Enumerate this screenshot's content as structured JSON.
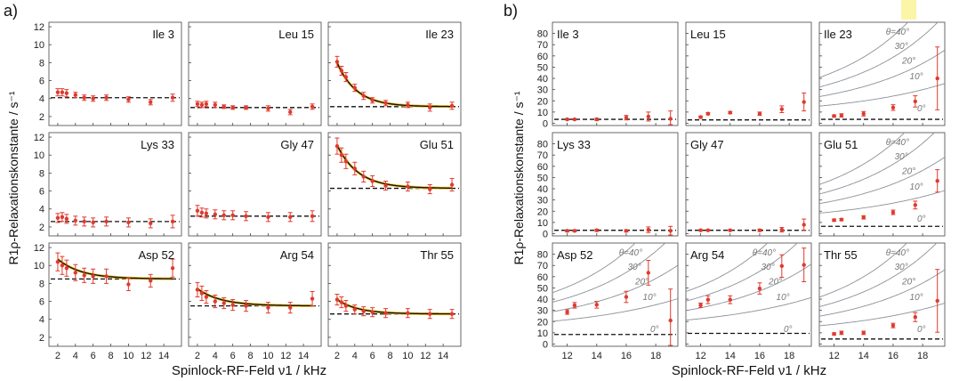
{
  "figure": {
    "label_a": "a)",
    "label_b": "b)",
    "ylabel_a": "R1ρ-Relaxationskonstante / s⁻¹",
    "ylabel_b": "R1ρ-Relaxationskonstante / s⁻¹",
    "xlabel_a": "Spinlock-RF-Feld ν1 / kHz",
    "xlabel_b": "Spinlock-RF-Feld ν1 / kHz",
    "theta_labels": [
      "θ=40°",
      "30°",
      "20°",
      "10°",
      "0°"
    ]
  },
  "colors": {
    "points": "#e03a2f",
    "fit": "#111111",
    "fit_highlight": "#f2c230",
    "dashed": "#111111",
    "theta_curves": "#8a9199",
    "highlight_box": "#fbf5a8"
  },
  "chart_data": [
    {
      "id": "a",
      "type": "scatter",
      "rows": 3,
      "cols": 3,
      "xlim": [
        1,
        16
      ],
      "ylim": [
        1,
        12.5
      ],
      "xticks": [
        2,
        4,
        6,
        8,
        10,
        12,
        14
      ],
      "yticks": [
        2,
        4,
        6,
        8,
        10,
        12
      ],
      "x": [
        2,
        2.5,
        3,
        4,
        5,
        6,
        7.5,
        10,
        12.5,
        15
      ],
      "panels": [
        {
          "title": "Ile 3",
          "baseline": 4.1,
          "y": [
            4.7,
            4.7,
            4.6,
            4.4,
            4.1,
            4.0,
            4.1,
            3.9,
            3.6,
            4.1
          ],
          "err": [
            0.4,
            0.4,
            0.4,
            0.3,
            0.3,
            0.3,
            0.3,
            0.3,
            0.3,
            0.4
          ]
        },
        {
          "title": "Leu 15",
          "baseline": 3.0,
          "y": [
            3.4,
            3.3,
            3.4,
            3.3,
            3.1,
            3.0,
            3.0,
            2.9,
            2.5,
            3.1
          ],
          "err": [
            0.3,
            0.3,
            0.3,
            0.3,
            0.2,
            0.2,
            0.2,
            0.3,
            0.3,
            0.3
          ]
        },
        {
          "title": "Ile 23",
          "baseline": 3.1,
          "fit": {
            "plateau": 3.1,
            "amp": 4.9,
            "k": 2.2
          },
          "y": [
            8.1,
            7.1,
            6.4,
            5.2,
            4.3,
            3.8,
            3.5,
            3.3,
            3.0,
            3.2
          ],
          "err": [
            0.6,
            0.5,
            0.5,
            0.4,
            0.4,
            0.3,
            0.3,
            0.3,
            0.4,
            0.4
          ]
        },
        {
          "title": "Lys 33",
          "baseline": 2.6,
          "y": [
            3.0,
            3.1,
            2.9,
            2.7,
            2.6,
            2.5,
            2.6,
            2.5,
            2.4,
            2.6
          ],
          "err": [
            0.5,
            0.5,
            0.5,
            0.5,
            0.5,
            0.5,
            0.5,
            0.5,
            0.5,
            0.7
          ]
        },
        {
          "title": "Gly 47",
          "baseline": 3.2,
          "y": [
            3.8,
            3.6,
            3.5,
            3.4,
            3.3,
            3.3,
            3.2,
            3.1,
            3.1,
            3.2
          ],
          "err": [
            0.6,
            0.5,
            0.5,
            0.5,
            0.5,
            0.5,
            0.5,
            0.5,
            0.5,
            0.6
          ]
        },
        {
          "title": "Glu 51",
          "baseline": 6.3,
          "fit": {
            "plateau": 6.3,
            "amp": 4.8,
            "k": 2.4
          },
          "y": [
            11.0,
            10.0,
            9.3,
            8.5,
            7.6,
            7.1,
            6.6,
            6.5,
            6.2,
            6.7
          ],
          "err": [
            0.9,
            0.8,
            0.8,
            0.7,
            0.6,
            0.6,
            0.5,
            0.5,
            0.5,
            0.7
          ]
        },
        {
          "title": "Asp 52",
          "baseline": 8.5,
          "fit": {
            "plateau": 8.5,
            "amp": 2.2,
            "k": 2.7
          },
          "y": [
            10.4,
            10.0,
            9.7,
            9.2,
            8.9,
            8.8,
            8.8,
            7.9,
            8.3,
            9.7
          ],
          "err": [
            1.0,
            1.0,
            0.9,
            0.9,
            0.8,
            0.8,
            0.8,
            0.7,
            0.7,
            1.0
          ]
        },
        {
          "title": "Arg 54",
          "baseline": 5.5,
          "fit": {
            "plateau": 5.5,
            "amp": 1.9,
            "k": 2.7
          },
          "y": [
            7.3,
            6.9,
            6.5,
            6.0,
            5.8,
            5.6,
            5.5,
            5.3,
            5.3,
            6.3
          ],
          "err": [
            0.8,
            0.8,
            0.7,
            0.7,
            0.6,
            0.6,
            0.6,
            0.6,
            0.6,
            0.8
          ]
        },
        {
          "title": "Thr 55",
          "baseline": 4.6,
          "fit": {
            "plateau": 4.6,
            "amp": 1.6,
            "k": 2.4
          },
          "y": [
            6.2,
            5.9,
            5.5,
            5.1,
            4.9,
            4.8,
            4.7,
            4.7,
            4.6,
            4.6
          ],
          "err": [
            0.6,
            0.6,
            0.6,
            0.5,
            0.5,
            0.5,
            0.5,
            0.5,
            0.5,
            0.5
          ]
        }
      ]
    },
    {
      "id": "b",
      "type": "scatter",
      "rows": 3,
      "cols": 3,
      "xlim": [
        11,
        19.5
      ],
      "ylim": [
        -2,
        90
      ],
      "xticks": [
        12,
        14,
        16,
        18
      ],
      "yticks": [
        0,
        10,
        20,
        30,
        40,
        50,
        60,
        70,
        80
      ],
      "x": [
        12,
        12.5,
        14,
        16,
        17.5,
        19
      ],
      "panels": [
        {
          "title": "Ile 3",
          "baseline": 3.5,
          "y": [
            3.5,
            3.5,
            3.5,
            5.0,
            6.0,
            4.0
          ],
          "err": [
            0.5,
            0.5,
            1.0,
            2.0,
            4.0,
            7.0
          ]
        },
        {
          "title": "Leu 15",
          "baseline": 3.0,
          "y": [
            5.5,
            8.5,
            9.5,
            8.5,
            12.5,
            19.0
          ],
          "err": [
            1.0,
            1.0,
            1.0,
            1.5,
            3.0,
            8.0
          ]
        },
        {
          "title": "Ile 23",
          "baseline": 3.5,
          "theta": true,
          "y": [
            6.5,
            7.0,
            8.5,
            14.0,
            19.5,
            40.0
          ],
          "err": [
            1.0,
            1.5,
            2.0,
            2.5,
            5.0,
            28.0
          ]
        },
        {
          "title": "Lys 33",
          "baseline": 3.0,
          "y": [
            2.5,
            2.5,
            3.0,
            2.5,
            3.5,
            2.5
          ],
          "err": [
            0.8,
            0.8,
            1.0,
            1.0,
            2.5,
            4.0
          ]
        },
        {
          "title": "Gly 47",
          "baseline": 3.0,
          "y": [
            3.0,
            3.0,
            3.0,
            3.0,
            3.5,
            8.0
          ],
          "err": [
            0.5,
            0.5,
            0.5,
            1.0,
            2.0,
            5.0
          ]
        },
        {
          "title": "Glu 51",
          "baseline": 6.5,
          "theta": true,
          "y": [
            12.0,
            12.5,
            14.5,
            19.0,
            25.5,
            47.0
          ],
          "err": [
            1.0,
            1.0,
            1.5,
            2.0,
            3.5,
            10.0
          ]
        },
        {
          "title": "Asp 52",
          "baseline": 8.5,
          "theta": true,
          "y": [
            28.5,
            34.5,
            35.0,
            42.0,
            63.5,
            21.0
          ],
          "err": [
            2.0,
            2.5,
            3.0,
            5.0,
            11.0,
            28.0
          ]
        },
        {
          "title": "Arg 54",
          "baseline": 9.5,
          "theta": true,
          "y": [
            34.5,
            39.5,
            39.5,
            49.5,
            69.5,
            70.5
          ],
          "err": [
            2.0,
            3.5,
            3.5,
            5.0,
            10.0,
            15.0
          ]
        },
        {
          "title": "Thr 55",
          "baseline": 4.5,
          "theta": true,
          "y": [
            9.0,
            10.0,
            10.0,
            16.5,
            24.0,
            38.5
          ],
          "err": [
            1.0,
            1.5,
            1.5,
            2.0,
            4.0,
            28.0
          ]
        }
      ]
    }
  ]
}
